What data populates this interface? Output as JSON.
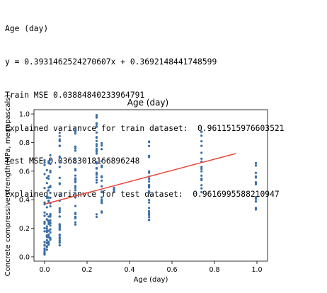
{
  "output_lines": [
    "Age (day)",
    "y = 0.3931462524270607x + 0.3692148441748599",
    "Train MSE 0.03884840233964791",
    "Explained varianvce for train dataset:  0.9611515976603521",
    "Test MSE 0.03683018166896248",
    "Explained varianvce for test dataset:  0.9616995588210947"
  ],
  "chart_data": {
    "type": "scatter",
    "title": "Age (day)",
    "xlabel": "Age (day)",
    "ylabel": "Concrete compressive strength(MPa, megapascals)",
    "xlim": [
      -0.05,
      1.05
    ],
    "ylim": [
      -0.03,
      1.03
    ],
    "xticks": [
      "0.0",
      "0.2",
      "0.4",
      "0.6",
      "0.8",
      "1.0"
    ],
    "yticks": [
      "0.0",
      "0.2",
      "0.4",
      "0.6",
      "0.8",
      "1.0"
    ],
    "grid": false,
    "point_color": "#3a6ea8",
    "line_color": "#e8463a",
    "regression_line": {
      "slope": 0.3931462524270607,
      "intercept": 0.3692148441748599,
      "x_range": [
        0,
        0.9
      ]
    },
    "groups": [
      {
        "x": 0.0,
        "y_min": 0.01,
        "y_max": 0.71
      },
      {
        "x": 0.011,
        "y_min": 0.04,
        "y_max": 0.62
      },
      {
        "x": 0.019,
        "y_min": 0.08,
        "y_max": 0.7
      },
      {
        "x": 0.027,
        "y_min": 0.12,
        "y_max": 0.72
      },
      {
        "x": 0.071,
        "y_min": 0.08,
        "y_max": 0.96
      },
      {
        "x": 0.145,
        "y_min": 0.22,
        "y_max": 0.95
      },
      {
        "x": 0.245,
        "y_min": 0.24,
        "y_max": 1.0
      },
      {
        "x": 0.269,
        "y_min": 0.3,
        "y_max": 0.8
      },
      {
        "x": 0.327,
        "y_min": 0.45,
        "y_max": 0.49
      },
      {
        "x": 0.492,
        "y_min": 0.24,
        "y_max": 0.87
      },
      {
        "x": 0.739,
        "y_min": 0.44,
        "y_max": 0.9
      },
      {
        "x": 0.995,
        "y_min": 0.28,
        "y_max": 0.67
      }
    ]
  }
}
